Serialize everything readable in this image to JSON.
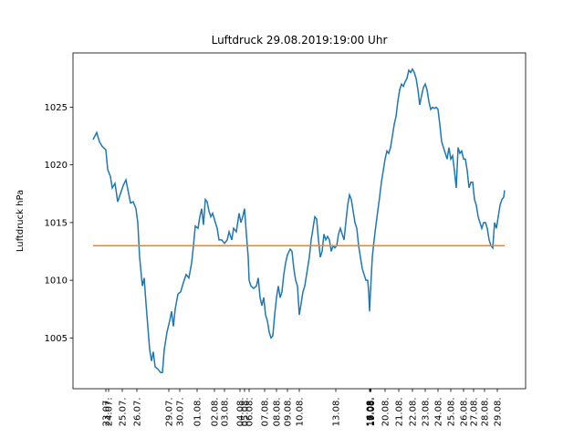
{
  "chart_data": {
    "type": "line",
    "title": "Luftdruck 29.08.2019:19:00 Uhr",
    "y_label": "Luftdruck hPa",
    "xlim": [
      0,
      496
    ],
    "ylim": [
      1000.6,
      1029.7
    ],
    "yticks": [
      1005,
      1010,
      1015,
      1020,
      1025
    ],
    "grid": false,
    "xticks": [
      {
        "value": 36,
        "label": "23.07."
      },
      {
        "value": 39,
        "label": "24.07."
      },
      {
        "value": 54,
        "label": "25.07."
      },
      {
        "value": 70,
        "label": "26.07."
      },
      {
        "value": 105,
        "label": "29.07."
      },
      {
        "value": 117,
        "label": "30.07."
      },
      {
        "value": 136,
        "label": "01.08."
      },
      {
        "value": 155,
        "label": "02.08."
      },
      {
        "value": 166,
        "label": "03.08."
      },
      {
        "value": 183,
        "label": "04.08."
      },
      {
        "value": 188,
        "label": "05.08."
      },
      {
        "value": 193,
        "label": "06.08."
      },
      {
        "value": 210,
        "label": "07.08."
      },
      {
        "value": 223,
        "label": "08.08."
      },
      {
        "value": 235,
        "label": "09.08."
      },
      {
        "value": 248,
        "label": "10.08."
      },
      {
        "value": 288,
        "label": "13.08."
      },
      {
        "value": 325,
        "label": "16.08."
      },
      {
        "value": 325.5,
        "label": "17.08."
      },
      {
        "value": 326,
        "label": "18.08."
      },
      {
        "value": 326.5,
        "label": "19.08."
      },
      {
        "value": 342,
        "label": "20.08."
      },
      {
        "value": 357,
        "label": "21.08."
      },
      {
        "value": 372,
        "label": "22.08."
      },
      {
        "value": 386,
        "label": "23.08."
      },
      {
        "value": 400,
        "label": "24.08."
      },
      {
        "value": 414,
        "label": "25.08."
      },
      {
        "value": 428,
        "label": "26.08."
      },
      {
        "value": 439,
        "label": "27.08."
      },
      {
        "value": 451,
        "label": "28.08."
      },
      {
        "value": 465,
        "label": "29.08."
      }
    ],
    "series": [
      {
        "color": "#1f77b4",
        "x": [
          22,
          26,
          29,
          32,
          36,
          38,
          41,
          43,
          46,
          49,
          52,
          55,
          58,
          61,
          63,
          66,
          69,
          71,
          73,
          76,
          78,
          80,
          82,
          84,
          86,
          88,
          90,
          93,
          96,
          98,
          100,
          103,
          106,
          108,
          110,
          112,
          115,
          118,
          121,
          124,
          127,
          130,
          132,
          134,
          137,
          139,
          141,
          143,
          145,
          147,
          149,
          151,
          153,
          156,
          158,
          160,
          163,
          166,
          169,
          171,
          174,
          176,
          179,
          182,
          184,
          186,
          188,
          190,
          192,
          193,
          195,
          198,
          201,
          203,
          205,
          207,
          209,
          211,
          213,
          215,
          217,
          219,
          221,
          223,
          225,
          227,
          229,
          231,
          233,
          235,
          238,
          240,
          242,
          244,
          246,
          248,
          250,
          252,
          254,
          257,
          259,
          261,
          263,
          265,
          267,
          269,
          271,
          273,
          275,
          277,
          279,
          281,
          283,
          285,
          287,
          289,
          291,
          293,
          295,
          297,
          299,
          301,
          303,
          305,
          307,
          309,
          311,
          313,
          315,
          317,
          319,
          321,
          323,
          324,
          325,
          326,
          328,
          330,
          332,
          334,
          336,
          338,
          340,
          342,
          344,
          346,
          348,
          350,
          352,
          354,
          356,
          358,
          360,
          362,
          364,
          366,
          368,
          370,
          372,
          374,
          376,
          378,
          380,
          382,
          384,
          386,
          388,
          390,
          392,
          394,
          396,
          398,
          400,
          402,
          404,
          406,
          408,
          410,
          412,
          414,
          416,
          418,
          420,
          422,
          424,
          426,
          428,
          430,
          432,
          434,
          436,
          438,
          440,
          442,
          444,
          446,
          448,
          450,
          452,
          454,
          456,
          458,
          460,
          462,
          464,
          466,
          468,
          470,
          472,
          473
        ],
        "values": [
          1022.2,
          1022.8,
          1022,
          1021.6,
          1021.3,
          1019.6,
          1019,
          1018,
          1018.4,
          1016.8,
          1017.5,
          1018.2,
          1018.7,
          1017.5,
          1016.7,
          1016.8,
          1016.2,
          1015,
          1012,
          1009.5,
          1010.2,
          1008,
          1006,
          1004,
          1003,
          1003.8,
          1002.5,
          1002.3,
          1002,
          1002,
          1004,
          1005.5,
          1006.5,
          1007.3,
          1006,
          1007.5,
          1008.8,
          1009,
          1009.8,
          1010.5,
          1010.2,
          1011.5,
          1013,
          1014.7,
          1014.5,
          1015.5,
          1016.2,
          1014.8,
          1017,
          1016.8,
          1016,
          1015.5,
          1015.8,
          1015,
          1014.5,
          1013.5,
          1013.5,
          1013.2,
          1013.5,
          1014.2,
          1013.5,
          1014.5,
          1014.2,
          1015.8,
          1015,
          1015.5,
          1016.2,
          1014,
          1012,
          1010,
          1009.5,
          1009.3,
          1009.5,
          1010.2,
          1008.5,
          1007.8,
          1008.5,
          1007,
          1006.5,
          1005.5,
          1005,
          1005.2,
          1007,
          1008.5,
          1009.5,
          1008.5,
          1009,
          1010.5,
          1011.5,
          1012.2,
          1012.7,
          1012.5,
          1011,
          1010,
          1009.5,
          1007,
          1008,
          1009,
          1009.5,
          1011,
          1012,
          1013.5,
          1014.5,
          1015.5,
          1015.3,
          1013.5,
          1012,
          1012.5,
          1014,
          1013.5,
          1013.8,
          1013.5,
          1012.5,
          1013,
          1012.8,
          1013,
          1014,
          1014.5,
          1014,
          1013.5,
          1015,
          1016.5,
          1017.4,
          1017,
          1016,
          1015,
          1014.5,
          1013,
          1012,
          1011,
          1010.5,
          1010,
          1010,
          1009,
          1007.3,
          1009,
          1012,
          1013.5,
          1014.8,
          1016,
          1017.2,
          1018.5,
          1019.5,
          1020.5,
          1021.2,
          1021,
          1021.5,
          1022.5,
          1023.5,
          1024.2,
          1025.5,
          1026.5,
          1027,
          1026.8,
          1027.2,
          1027.5,
          1028.2,
          1028,
          1028.3,
          1028,
          1027.5,
          1026.5,
          1025.2,
          1026,
          1026.7,
          1027,
          1026.5,
          1025.5,
          1024.8,
          1025,
          1024.9,
          1025,
          1024.8,
          1023.5,
          1022,
          1021.5,
          1021,
          1020.5,
          1021.5,
          1020.5,
          1020.8,
          1019.5,
          1018,
          1021.5,
          1021,
          1021.2,
          1020.5,
          1020.5,
          1019.5,
          1018,
          1018.5,
          1018.5,
          1017,
          1016.5,
          1015.5,
          1015,
          1014.5,
          1015,
          1015,
          1014.5,
          1013.5,
          1013,
          1012.8,
          1015,
          1014.5,
          1015.5,
          1016.5,
          1017,
          1017.2,
          1017.8
        ]
      },
      {
        "color": "#ff7f0e",
        "x": [
          22,
          473
        ],
        "values": [
          1013,
          1013
        ]
      }
    ]
  }
}
